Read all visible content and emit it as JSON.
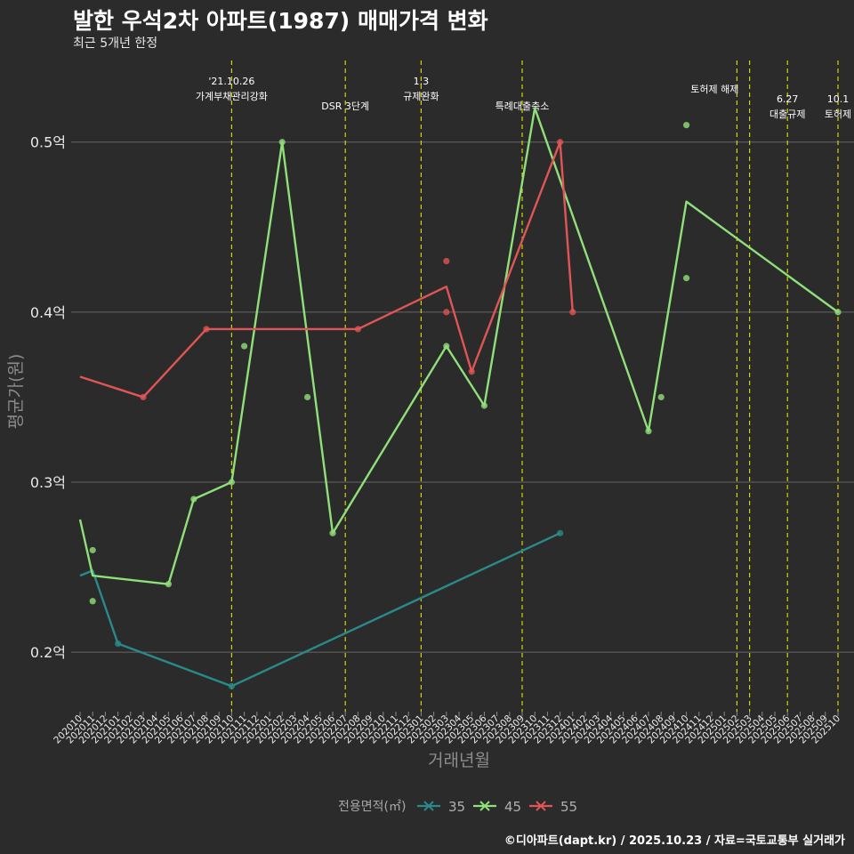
{
  "title": "발한 우석2차 아파트(1987) 매매가격 변화",
  "subtitle": "최근 5개년 한정",
  "caption": "©디아파트(dapt.kr) / 2025.10.23 / 자료=국토교통부 실거래가",
  "chart_data": {
    "type": "line",
    "xlabel": "거래년월",
    "ylabel": "평균가(원)",
    "ylim": [
      0.165,
      0.548
    ],
    "y_ticks": [
      0.2,
      0.3,
      0.4,
      0.5
    ],
    "y_tick_labels": [
      "0.2억",
      "0.3억",
      "0.4억",
      "0.5억"
    ],
    "grid": true,
    "categories": [
      "202010",
      "202011",
      "202012",
      "202101",
      "202102",
      "202103",
      "202104",
      "202105",
      "202106",
      "202107",
      "202108",
      "202109",
      "202110",
      "202111",
      "202112",
      "202201",
      "202202",
      "202203",
      "202204",
      "202205",
      "202206",
      "202207",
      "202208",
      "202209",
      "202210",
      "202211",
      "202212",
      "202301",
      "202302",
      "202303",
      "202304",
      "202305",
      "202306",
      "202307",
      "202308",
      "202309",
      "202310",
      "202311",
      "202312",
      "202401",
      "202402",
      "202403",
      "202404",
      "202405",
      "202406",
      "202407",
      "202408",
      "202409",
      "202410",
      "202411",
      "202412",
      "202501",
      "202502",
      "202503",
      "202504",
      "202505",
      "202506",
      "202507",
      "202508",
      "202509",
      "202510"
    ],
    "legend": {
      "title": "전용면적(㎡)",
      "position": "bottom"
    },
    "series": [
      {
        "name": "35",
        "color": "#2a8a8a",
        "line": [
          [
            "202010",
            0.245
          ],
          [
            "202011",
            0.248
          ],
          [
            "202101",
            0.205
          ],
          [
            "202110",
            0.18
          ],
          [
            "202312",
            0.27
          ]
        ],
        "points": [
          [
            "202101",
            0.205
          ],
          [
            "202110",
            0.18
          ],
          [
            "202312",
            0.27
          ]
        ]
      },
      {
        "name": "45",
        "color": "#90e07a",
        "line": [
          [
            "202010",
            0.278
          ],
          [
            "202011",
            0.245
          ],
          [
            "202105",
            0.24
          ],
          [
            "202107",
            0.29
          ],
          [
            "202110",
            0.3
          ],
          [
            "202202",
            0.5
          ],
          [
            "202206",
            0.27
          ],
          [
            "202303",
            0.38
          ],
          [
            "202306",
            0.345
          ],
          [
            "202310",
            0.52
          ],
          [
            "202407",
            0.33
          ],
          [
            "202410",
            0.465
          ],
          [
            "202510",
            0.4
          ]
        ],
        "points": [
          [
            "202011",
            0.26
          ],
          [
            "202011",
            0.23
          ],
          [
            "202105",
            0.24
          ],
          [
            "202107",
            0.29
          ],
          [
            "202110",
            0.3
          ],
          [
            "202111",
            0.38
          ],
          [
            "202202",
            0.5
          ],
          [
            "202204",
            0.35
          ],
          [
            "202206",
            0.27
          ],
          [
            "202303",
            0.38
          ],
          [
            "202306",
            0.345
          ],
          [
            "202407",
            0.33
          ],
          [
            "202408",
            0.35
          ],
          [
            "202410",
            0.51
          ],
          [
            "202410",
            0.42
          ],
          [
            "202510",
            0.4
          ]
        ]
      },
      {
        "name": "55",
        "color": "#e05555",
        "line": [
          [
            "202010",
            0.362
          ],
          [
            "202103",
            0.35
          ],
          [
            "202108",
            0.39
          ],
          [
            "202208",
            0.39
          ],
          [
            "202303",
            0.415
          ],
          [
            "202305",
            0.365
          ],
          [
            "202312",
            0.5
          ],
          [
            "202401",
            0.4
          ]
        ],
        "points": [
          [
            "202103",
            0.35
          ],
          [
            "202108",
            0.39
          ],
          [
            "202208",
            0.39
          ],
          [
            "202303",
            0.43
          ],
          [
            "202303",
            0.4
          ],
          [
            "202305",
            0.365
          ],
          [
            "202312",
            0.5
          ],
          [
            "202401",
            0.4
          ]
        ]
      }
    ],
    "annotations": [
      {
        "x": "202110",
        "lines": [
          "'21.10.26",
          "가계부채관리강화"
        ],
        "row": "top"
      },
      {
        "x": "202207",
        "lines": [
          "DSR 3단계"
        ],
        "row": "low"
      },
      {
        "x": "202301",
        "lines": [
          "1.3",
          "규제완화"
        ],
        "row": "top"
      },
      {
        "x": "202309",
        "lines": [
          "특례대출축소"
        ],
        "row": "low"
      },
      {
        "x": "202502",
        "lines": [
          "토허제 해제"
        ],
        "row": "mid",
        "anchor": "end"
      },
      {
        "x": "202503",
        "lines": [],
        "row": "mid"
      },
      {
        "x": "202506",
        "lines": [
          "6.27",
          "대출규제"
        ],
        "row": "high"
      },
      {
        "x": "202510",
        "lines": [
          "10.1",
          "토허제"
        ],
        "row": "high"
      }
    ]
  }
}
